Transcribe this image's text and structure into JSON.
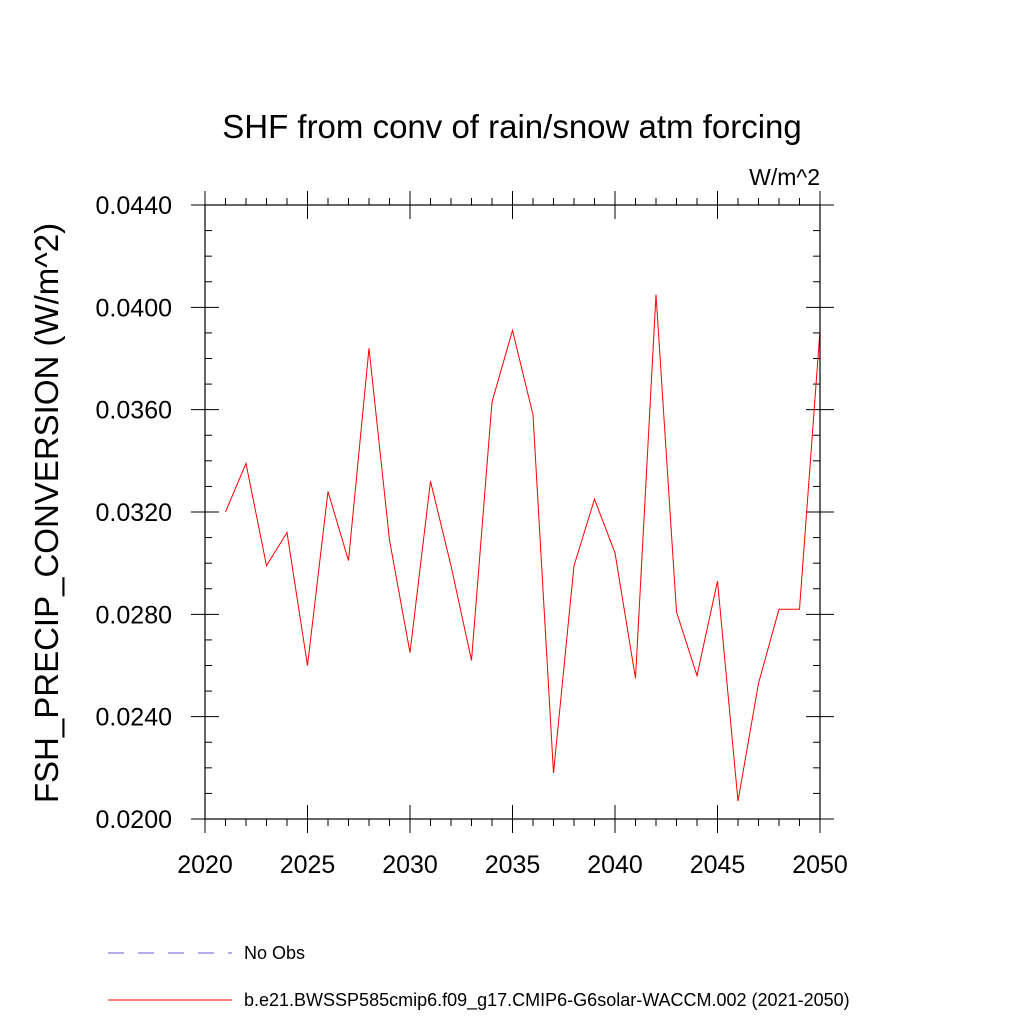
{
  "chart_data": {
    "type": "line",
    "title": "SHF from conv of rain/snow atm forcing",
    "units_label": "W/m^2",
    "ylabel": "FSH_PRECIP_CONVERSION  (W/m^2)",
    "xlabel": "",
    "xlim": [
      2020,
      2050
    ],
    "ylim": [
      0.02,
      0.044
    ],
    "x_ticks": [
      2020,
      2025,
      2030,
      2035,
      2040,
      2045,
      2050
    ],
    "x_tick_labels": [
      "2020",
      "2025",
      "2030",
      "2035",
      "2040",
      "2045",
      "2050"
    ],
    "y_ticks": [
      0.02,
      0.024,
      0.028,
      0.032,
      0.036,
      0.04,
      0.044
    ],
    "y_tick_labels": [
      "0.0200",
      "0.0240",
      "0.0280",
      "0.0320",
      "0.0360",
      "0.0400",
      "0.0440"
    ],
    "grid": false,
    "legend_position": "bottom",
    "series": [
      {
        "name": "b.e21.BWSSP585cmip6.f09_g17.CMIP6-G6solar-WACCM.002 (2021-2050)",
        "color": "#ff0000",
        "line_style": "solid",
        "x": [
          2021,
          2022,
          2023,
          2024,
          2025,
          2026,
          2027,
          2028,
          2029,
          2030,
          2031,
          2032,
          2033,
          2034,
          2035,
          2036,
          2037,
          2038,
          2039,
          2040,
          2041,
          2042,
          2043,
          2044,
          2045,
          2046,
          2047,
          2048,
          2049,
          2050
        ],
        "y": [
          0.032,
          0.0339,
          0.0299,
          0.0312,
          0.026,
          0.0328,
          0.0301,
          0.0384,
          0.0309,
          0.0265,
          0.0332,
          0.0299,
          0.0262,
          0.0363,
          0.0391,
          0.0358,
          0.0218,
          0.0299,
          0.0325,
          0.0304,
          0.0255,
          0.0405,
          0.0281,
          0.0256,
          0.0293,
          0.0207,
          0.0253,
          0.0282,
          0.0282,
          0.0391
        ]
      }
    ],
    "legend": [
      {
        "label": "No Obs",
        "color": "#6a5acd",
        "line_style": "dashed"
      },
      {
        "label": "b.e21.BWSSP585cmip6.f09_g17.CMIP6-G6solar-WACCM.002 (2021-2050)",
        "color": "#ff0000",
        "line_style": "solid"
      }
    ]
  }
}
